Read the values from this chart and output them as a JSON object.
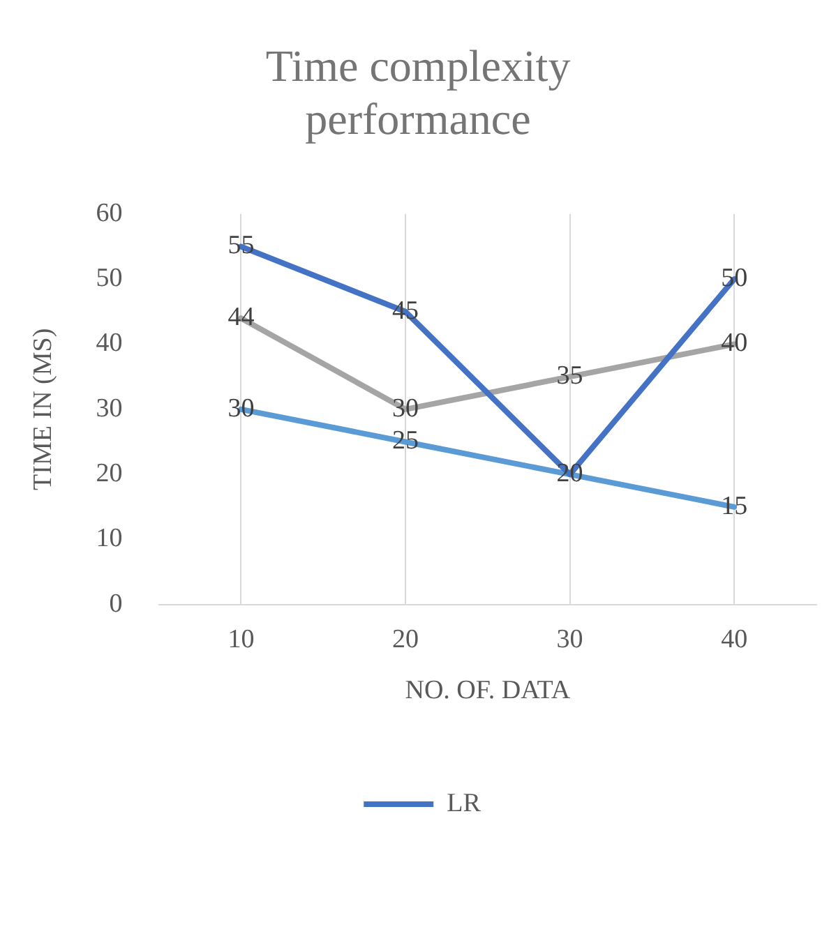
{
  "chart_data": {
    "type": "line",
    "title": "Time complexity performance",
    "xlabel": "NO. OF. DATA",
    "ylabel": "TIME IN (MS)",
    "categories": [
      "10",
      "20",
      "30",
      "40"
    ],
    "series": [
      {
        "name": "LR",
        "color": "#4472c4",
        "values": [
          55,
          45,
          20,
          50
        ],
        "value_labels": [
          "55",
          "45",
          "20",
          "50"
        ]
      },
      {
        "color": "#a5a5a5",
        "values": [
          44,
          30,
          35,
          40
        ],
        "value_labels": [
          "44",
          "30",
          "35",
          "40"
        ]
      },
      {
        "color": "#5b9bd5",
        "values": [
          30,
          25,
          20,
          15
        ],
        "value_labels": [
          "30",
          "25",
          null,
          "15"
        ]
      }
    ],
    "ylim": [
      0,
      60
    ],
    "yticks": [
      0,
      10,
      20,
      30,
      40,
      50,
      60
    ],
    "grid": "x",
    "legend": "bottom",
    "marker": "none",
    "line_style": "solid"
  }
}
